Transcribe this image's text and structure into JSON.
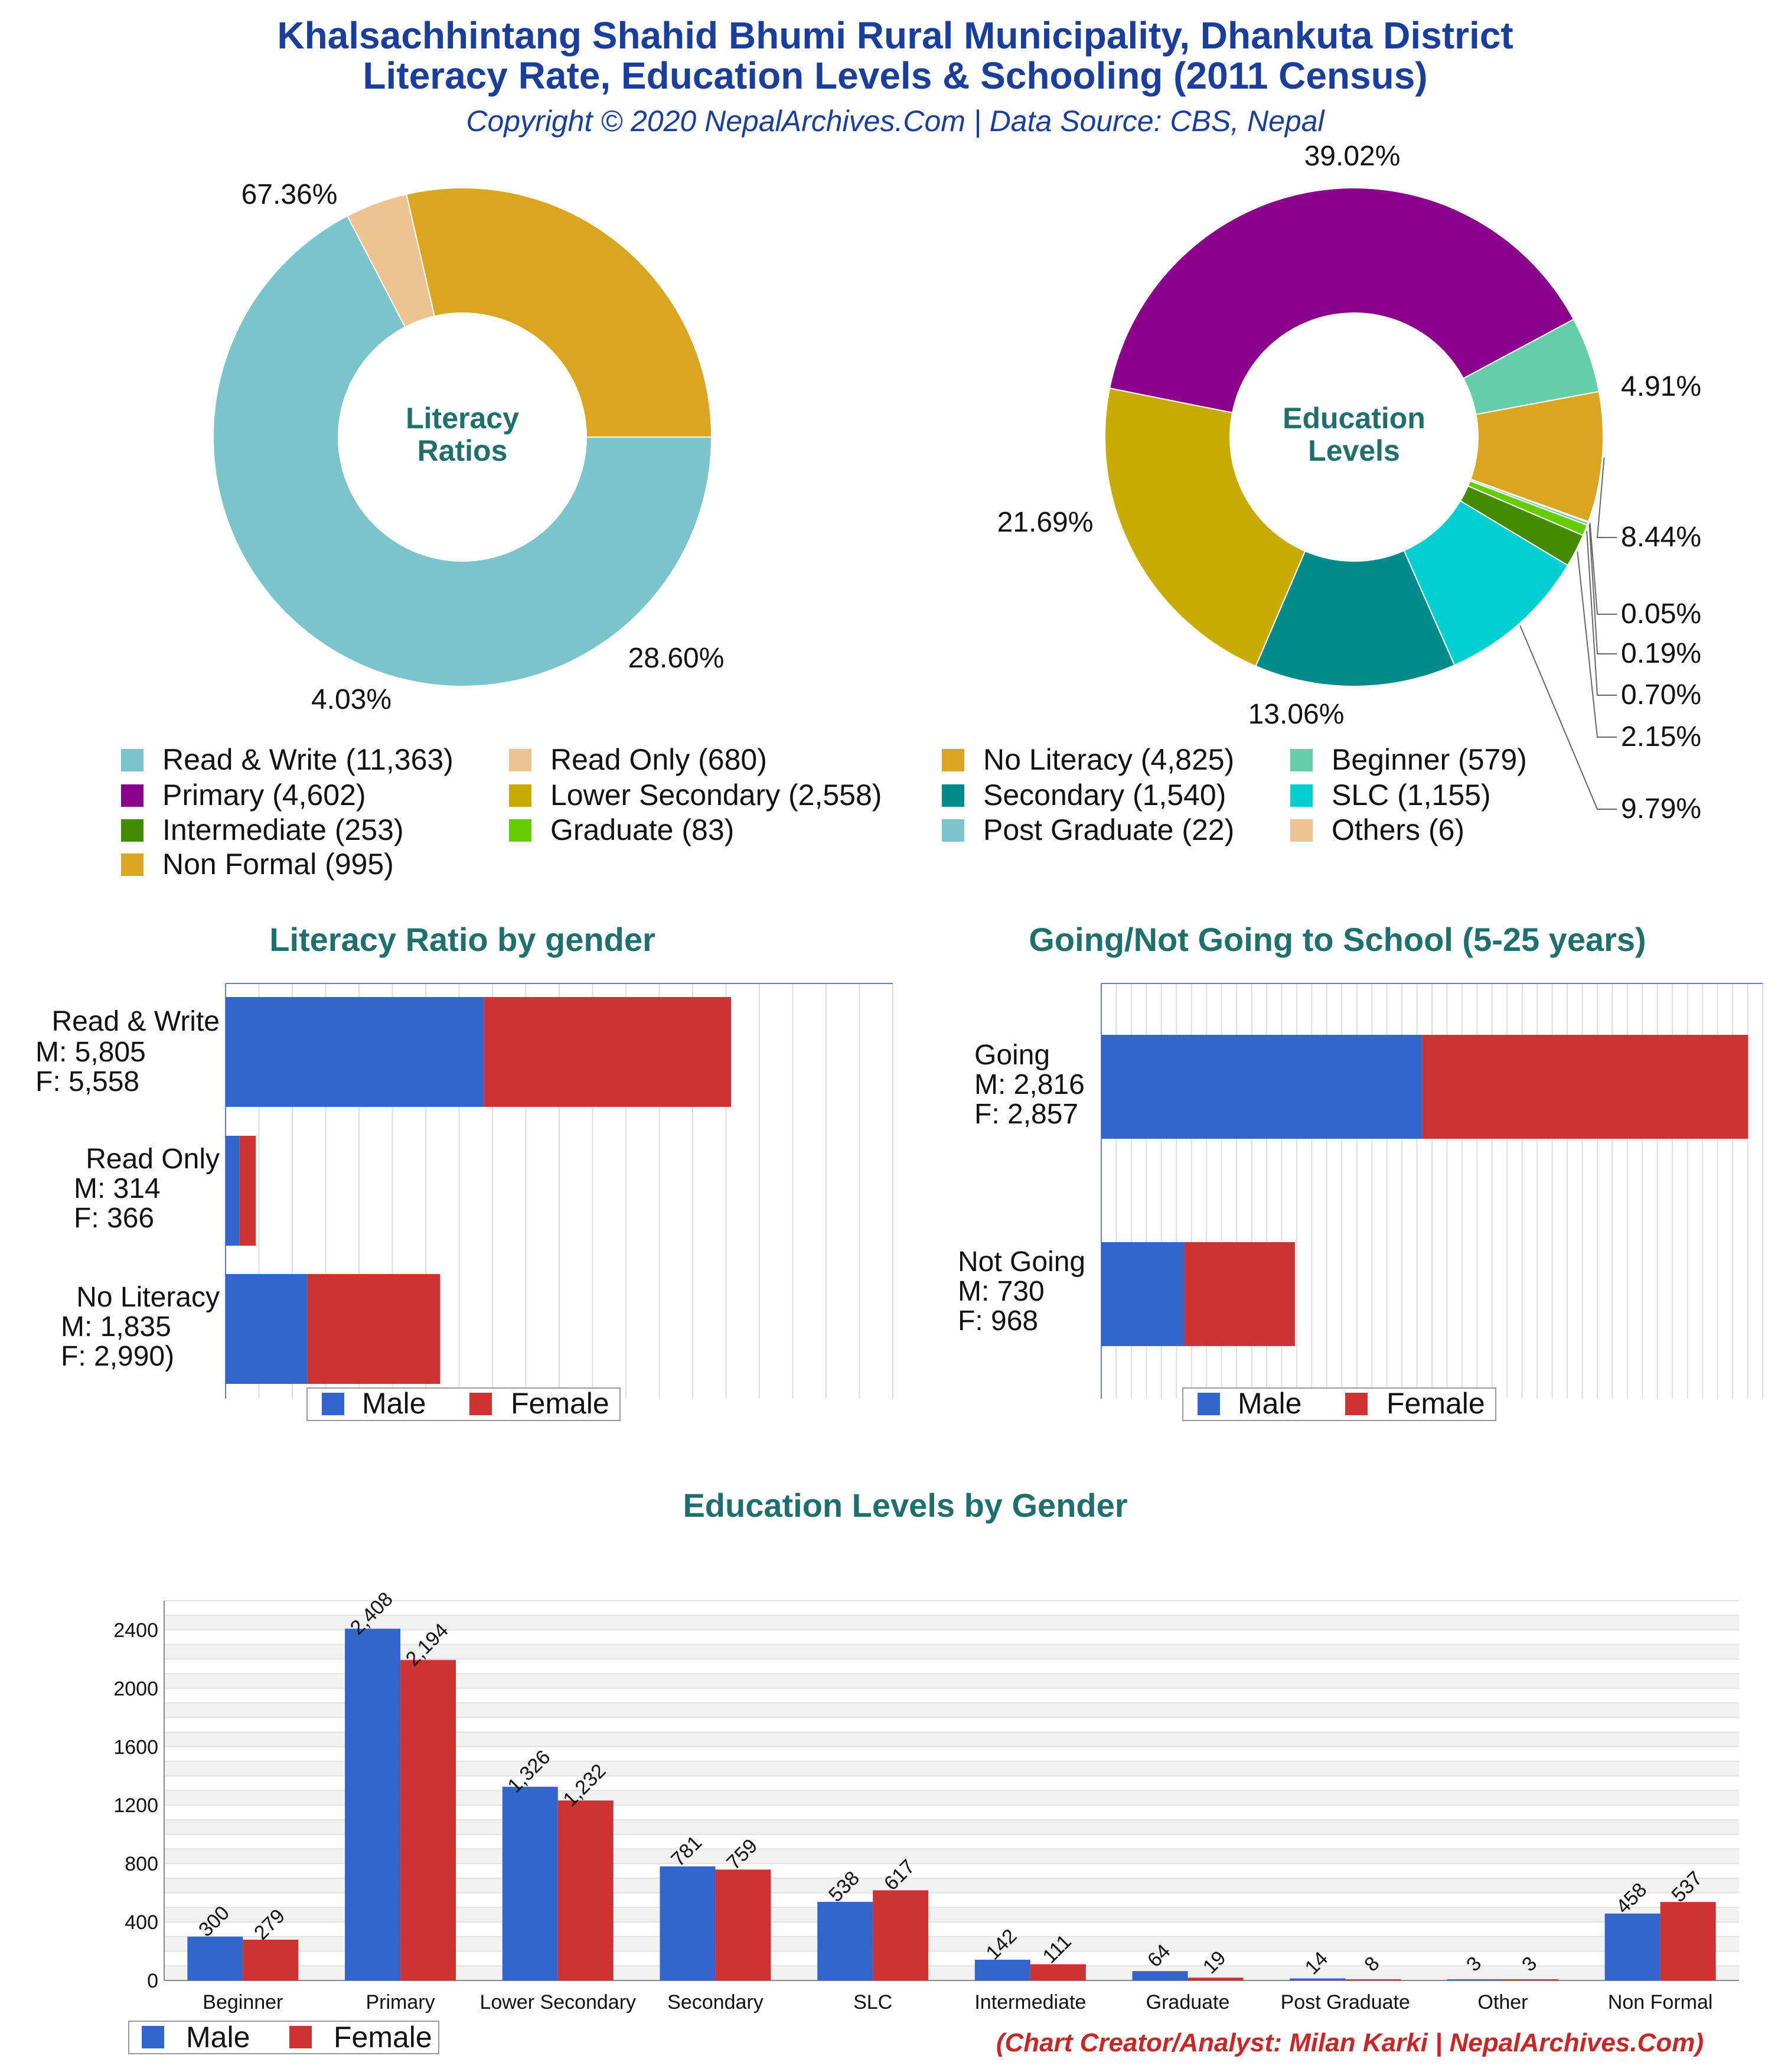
{
  "header": {
    "title_line1": "Khalsachhintang Shahid Bhumi Rural Municipality, Dhankuta District",
    "title_line2": "Literacy Rate, Education Levels & Schooling (2011 Census)",
    "subtitle": "Copyright © 2020 NepalArchives.Com | Data Source: CBS, Nepal"
  },
  "credit": "(Chart Creator/Analyst: Milan Karki | NepalArchives.Com)",
  "colors": {
    "male": "#3366cc",
    "female": "#cc3333"
  },
  "chart_data": [
    {
      "type": "pie",
      "title": "",
      "center_label": [
        "Literacy",
        "Ratios"
      ],
      "slices": [
        {
          "label": "Read & Write",
          "value": 11363,
          "percent": "67.36%",
          "color": "#7bc4cc"
        },
        {
          "label": "Read Only",
          "value": 680,
          "percent": "4.03%",
          "color": "#edc393"
        },
        {
          "label": "No Literacy",
          "value": 4825,
          "percent": "28.60%",
          "color": "#daa520"
        }
      ]
    },
    {
      "type": "pie",
      "title": "",
      "center_label": [
        "Education",
        "Levels"
      ],
      "slices": [
        {
          "label": "Beginner",
          "value": 579,
          "percent": "4.91%",
          "color": "#66cdaa"
        },
        {
          "label": "Non Formal",
          "value": 995,
          "percent": "8.44%",
          "color": "#daa520"
        },
        {
          "label": "Others",
          "value": 6,
          "percent": "0.05%",
          "color": "#edc393"
        },
        {
          "label": "Post Graduate",
          "value": 22,
          "percent": "0.19%",
          "color": "#7bc4cc"
        },
        {
          "label": "Graduate",
          "value": 83,
          "percent": "0.70%",
          "color": "#66cc00"
        },
        {
          "label": "Intermediate",
          "value": 253,
          "percent": "2.15%",
          "color": "#458b00"
        },
        {
          "label": "SLC",
          "value": 1155,
          "percent": "9.79%",
          "color": "#00ced1"
        },
        {
          "label": "Secondary",
          "value": 1540,
          "percent": "13.06%",
          "color": "#008b8b"
        },
        {
          "label": "Lower Secondary",
          "value": 2558,
          "percent": "21.69%",
          "color": "#c9aa00"
        },
        {
          "label": "Primary",
          "value": 4602,
          "percent": "39.02%",
          "color": "#8b008b"
        }
      ]
    },
    {
      "type": "bar",
      "orientation": "horizontal-stacked",
      "title": "Literacy Ratio by gender",
      "categories": [
        "Read & Write",
        "Read Only",
        "No Literacy"
      ],
      "category_labels": [
        [
          "Read & Write",
          "M: 5,805",
          "F: 5,558"
        ],
        [
          "Read Only",
          "M: 314",
          "F: 366"
        ],
        [
          "No Literacy",
          "M: 1,835",
          "F: 2,990)"
        ]
      ],
      "series": [
        {
          "name": "Male",
          "values": [
            5805,
            314,
            1835
          ]
        },
        {
          "name": "Female",
          "values": [
            5558,
            366,
            2990
          ]
        }
      ],
      "xlim": [
        0,
        15000
      ],
      "legend": "bottom"
    },
    {
      "type": "bar",
      "orientation": "horizontal-stacked",
      "title": "Going/Not Going to School (5-25 years)",
      "categories": [
        "Going",
        "Not Going"
      ],
      "category_labels": [
        [
          "Going",
          "M: 2,816",
          "F: 2,857"
        ],
        [
          "Not Going",
          "M: 730",
          "F: 968"
        ]
      ],
      "series": [
        {
          "name": "Male",
          "values": [
            2816,
            730
          ]
        },
        {
          "name": "Female",
          "values": [
            2857,
            968
          ]
        }
      ],
      "xlim": [
        0,
        5800
      ],
      "legend": "bottom"
    },
    {
      "type": "bar",
      "title": "Education Levels by Gender",
      "categories": [
        "Beginner",
        "Primary",
        "Lower Secondary",
        "Secondary",
        "SLC",
        "Intermediate",
        "Graduate",
        "Post Graduate",
        "Other",
        "Non Formal"
      ],
      "series": [
        {
          "name": "Male",
          "values": [
            300,
            2408,
            1326,
            781,
            538,
            142,
            64,
            14,
            3,
            458
          ],
          "labels": [
            "300",
            "2,408",
            "1,326",
            "781",
            "538",
            "142",
            "64",
            "14",
            "3",
            "458"
          ]
        },
        {
          "name": "Female",
          "values": [
            279,
            2194,
            1232,
            759,
            617,
            111,
            19,
            8,
            3,
            537
          ],
          "labels": [
            "279",
            "2,194",
            "1,232",
            "759",
            "617",
            "111",
            "19",
            "8",
            "3",
            "537"
          ]
        }
      ],
      "yticks": [
        0,
        400,
        800,
        1200,
        1600,
        2000,
        2400
      ],
      "ylim": [
        0,
        2600
      ],
      "legend": "bottom-left"
    }
  ],
  "legend_labels": {
    "male": "Male",
    "female": "Female"
  }
}
